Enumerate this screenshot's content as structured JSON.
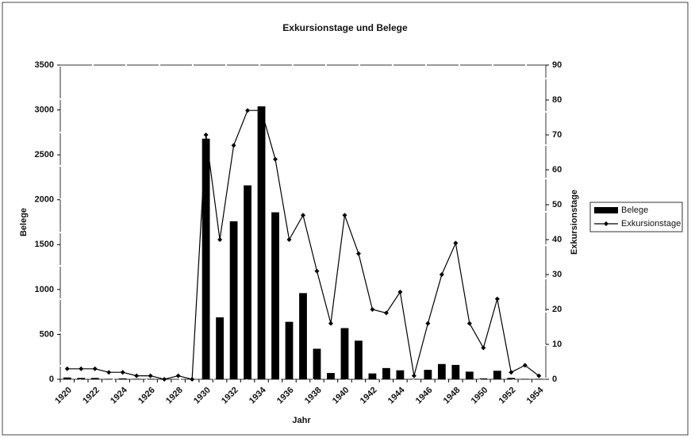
{
  "chart_data": {
    "type": "bar_line",
    "title": "Exkursionstage und Belege",
    "categories": [
      "1920",
      null,
      "1922",
      null,
      "1924",
      null,
      "1926",
      null,
      "1928",
      null,
      "1930",
      null,
      "1932",
      null,
      "1934",
      null,
      "1936",
      null,
      "1938",
      null,
      "1940",
      null,
      "1942",
      null,
      "1944",
      null,
      "1946",
      null,
      "1948",
      null,
      "1950",
      null,
      "1952",
      null,
      "1954"
    ],
    "series": [
      {
        "name": "Belege",
        "color": "#000000",
        "type": "bar",
        "axis": "y",
        "values": [
          20,
          15,
          15,
          5,
          10,
          5,
          5,
          5,
          0,
          0,
          2680,
          690,
          1760,
          2160,
          3040,
          1860,
          640,
          960,
          340,
          70,
          570,
          430,
          65,
          125,
          100,
          5,
          105,
          170,
          160,
          85,
          10,
          95,
          15,
          5,
          5
        ]
      },
      {
        "name": "Exkursionstage",
        "color": "#000000",
        "type": "line",
        "axis": "y2",
        "values": [
          3,
          3,
          3,
          2,
          2,
          1,
          1,
          0,
          1,
          0,
          70,
          40,
          67,
          77,
          77,
          63,
          40,
          47,
          31,
          16,
          47,
          36,
          20,
          19,
          25,
          1,
          16,
          30,
          39,
          16,
          9,
          23,
          2,
          4,
          1
        ]
      }
    ],
    "xlabel": "Jahr",
    "ylabel": "Belege",
    "y2label": "Exkursionstage",
    "ylim": [
      0,
      3500
    ],
    "yticks": [
      0,
      500,
      1000,
      1500,
      2000,
      2500,
      3000,
      3500
    ],
    "y2lim": [
      0,
      90
    ],
    "y2ticks": [
      0,
      10,
      20,
      30,
      40,
      50,
      60,
      70,
      80,
      90
    ],
    "legend": "right"
  }
}
